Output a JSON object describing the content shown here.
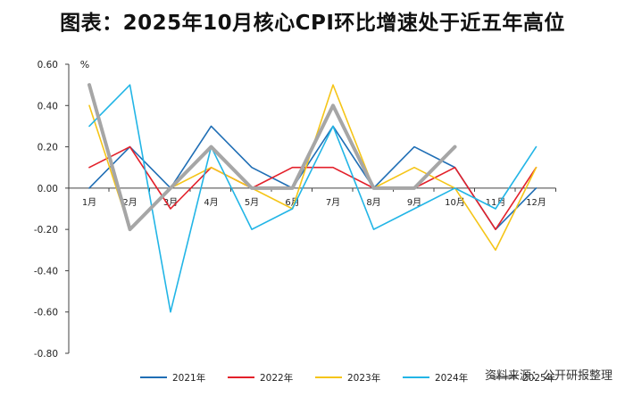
{
  "title": "图表：2025年10月核心CPI环比增速处于近五年高位",
  "source": "资料来源：公开研报整理",
  "chart_data": {
    "type": "line",
    "unit_label": "%",
    "categories": [
      "1月",
      "2月",
      "3月",
      "4月",
      "5月",
      "6月",
      "7月",
      "8月",
      "9月",
      "10月",
      "11月",
      "12月"
    ],
    "ylim": [
      -0.8,
      0.6
    ],
    "yticks": [
      "0.60",
      "0.40",
      "0.20",
      "0.00",
      "-0.20",
      "-0.40",
      "-0.60",
      "-0.80"
    ],
    "legend_position": "bottom",
    "grid": false,
    "series": [
      {
        "name": "2021年",
        "color": "#1f6eb5",
        "values": [
          0.0,
          0.2,
          0.0,
          0.3,
          0.1,
          0.0,
          0.3,
          0.0,
          0.2,
          0.1,
          -0.2,
          0.0
        ]
      },
      {
        "name": "2022年",
        "color": "#e3202a",
        "values": [
          0.1,
          0.2,
          -0.1,
          0.1,
          0.0,
          0.1,
          0.1,
          0.0,
          0.0,
          0.1,
          -0.2,
          0.1
        ]
      },
      {
        "name": "2023年",
        "color": "#f5c518",
        "values": [
          0.4,
          -0.2,
          0.0,
          0.1,
          0.0,
          -0.1,
          0.5,
          0.0,
          0.1,
          0.0,
          -0.3,
          0.1
        ]
      },
      {
        "name": "2024年",
        "color": "#22b5e6",
        "values": [
          0.3,
          0.5,
          -0.6,
          0.2,
          -0.2,
          -0.1,
          0.3,
          -0.2,
          -0.1,
          0.0,
          -0.1,
          0.2
        ]
      },
      {
        "name": "2025年",
        "color": "#a6a6a6",
        "values": [
          0.5,
          -0.2,
          0.0,
          0.2,
          0.0,
          0.0,
          0.4,
          0.0,
          0.0,
          0.2,
          null,
          null
        ]
      }
    ]
  }
}
